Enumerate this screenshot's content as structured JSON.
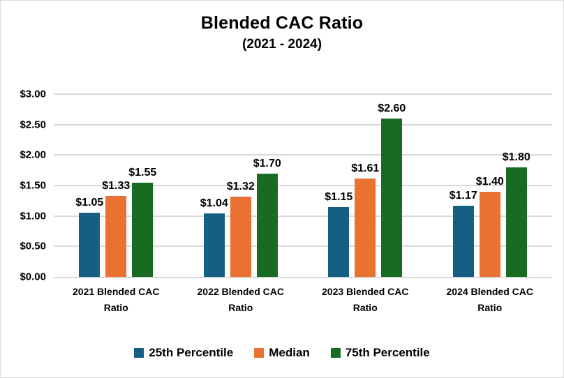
{
  "chart_data": {
    "type": "bar",
    "title": "Blended CAC Ratio",
    "subtitle": "(2021 - 2024)",
    "categories": [
      "2021 Blended CAC Ratio",
      "2022 Blended CAC Ratio",
      "2023 Blended CAC Ratio",
      "2024 Blended CAC Ratio"
    ],
    "series": [
      {
        "name": "25th Percentile",
        "color": "#156082",
        "values": [
          1.05,
          1.04,
          1.15,
          1.17
        ],
        "labels": [
          "$1.05",
          "$1.04",
          "$1.15",
          "$1.17"
        ]
      },
      {
        "name": "Median",
        "color": "#E97132",
        "values": [
          1.33,
          1.32,
          1.61,
          1.4
        ],
        "labels": [
          "$1.33",
          "$1.32",
          "$1.61",
          "$1.40"
        ]
      },
      {
        "name": "75th Percentile",
        "color": "#196B24",
        "values": [
          1.55,
          1.7,
          2.6,
          1.8
        ],
        "labels": [
          "$1.55",
          "$1.70",
          "$2.60",
          "$1.80"
        ]
      }
    ],
    "y_axis": {
      "min": 0,
      "max": 3.0,
      "step": 0.5,
      "tick_labels": [
        "$0.00",
        "$0.50",
        "$1.00",
        "$1.50",
        "$2.00",
        "$2.50",
        "$3.00"
      ]
    },
    "grid": true,
    "legend_position": "bottom"
  },
  "colors": {
    "accent_blue": "#156082",
    "accent_orange": "#E97132",
    "accent_green": "#196B24",
    "gridline": "#D9D9D9",
    "text": "#000000",
    "background": "#FFFFFF",
    "border": "#D9D9D9"
  }
}
